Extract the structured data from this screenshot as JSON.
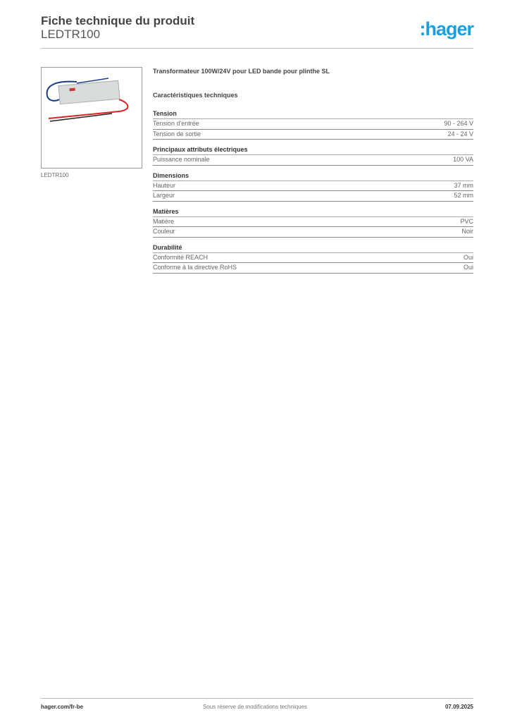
{
  "header": {
    "title": "Fiche technique du produit",
    "reference": "LEDTR100",
    "logo_text": ":hager",
    "logo_color": "#1aa0dc"
  },
  "product": {
    "image_caption": "LEDTR100",
    "description": "Transformateur 100W/24V pour LED bande pour plinthe SL"
  },
  "characteristics_title": "Caractéristiques techniques",
  "sections": [
    {
      "title": "Tension",
      "rows": [
        {
          "label": "Tension d'entrée",
          "value": "90 - 264 V"
        },
        {
          "label": "Tension de sortie",
          "value": "24 - 24 V"
        }
      ]
    },
    {
      "title": "Principaux attributs électriques",
      "rows": [
        {
          "label": "Puissance nominale",
          "value": "100 VA"
        }
      ]
    },
    {
      "title": "Dimensions",
      "rows": [
        {
          "label": "Hauteur",
          "value": "37 mm"
        },
        {
          "label": "Largeur",
          "value": "52 mm"
        }
      ]
    },
    {
      "title": "Matières",
      "rows": [
        {
          "label": "Matière",
          "value": "PVC"
        },
        {
          "label": "Couleur",
          "value": "Noir"
        }
      ]
    },
    {
      "title": "Durabilité",
      "rows": [
        {
          "label": "Conformité REACH",
          "value": "Oui"
        },
        {
          "label": "Conforme à la directive RoHS",
          "value": "Oui"
        }
      ]
    }
  ],
  "footer": {
    "website": "hager.com/fr-be",
    "disclaimer": "Sous réserve de modifications techniques",
    "date": "07.09.2025"
  }
}
